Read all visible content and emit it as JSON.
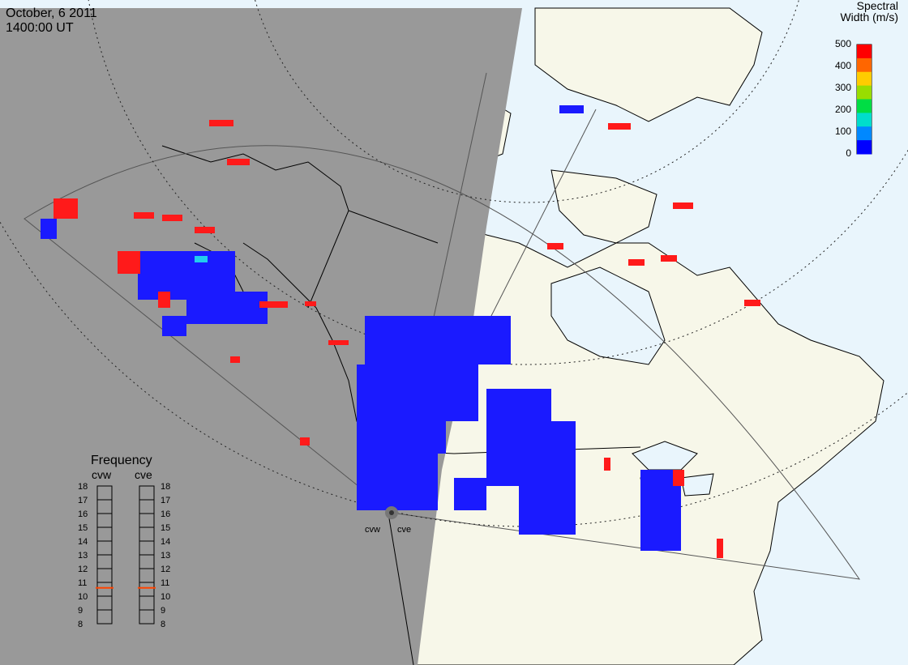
{
  "header": {
    "date": "October, 6 2011",
    "time": "1400:00 UT"
  },
  "colorbar": {
    "title_line1": "Spectral",
    "title_line2": "Width (m/s)",
    "ticks": [
      "500",
      "400",
      "300",
      "200",
      "100",
      "0"
    ],
    "colors": [
      "#ff0000",
      "#ff6600",
      "#ffcc00",
      "#99dd00",
      "#00dd44",
      "#00ddcc",
      "#0088ff",
      "#0000ff"
    ]
  },
  "frequency_panel": {
    "title": "Frequency",
    "radars": [
      {
        "label": "cvw",
        "value": 10.6
      },
      {
        "label": "cve",
        "value": 10.6
      }
    ],
    "scale": [
      "18",
      "17",
      "16",
      "15",
      "14",
      "13",
      "12",
      "11",
      "10",
      "9",
      "8"
    ],
    "marker_color": "#ff4400"
  },
  "sites": [
    {
      "label": "cvw"
    },
    {
      "label": "cve"
    }
  ],
  "map": {
    "night_color": "#999999",
    "land_color": "#f7f7e9",
    "water_color": "#e9f5fc",
    "scatter_blue": "#1a1aff",
    "scatter_red": "#ff1a1a",
    "scatter_cyan": "#22ccee"
  }
}
